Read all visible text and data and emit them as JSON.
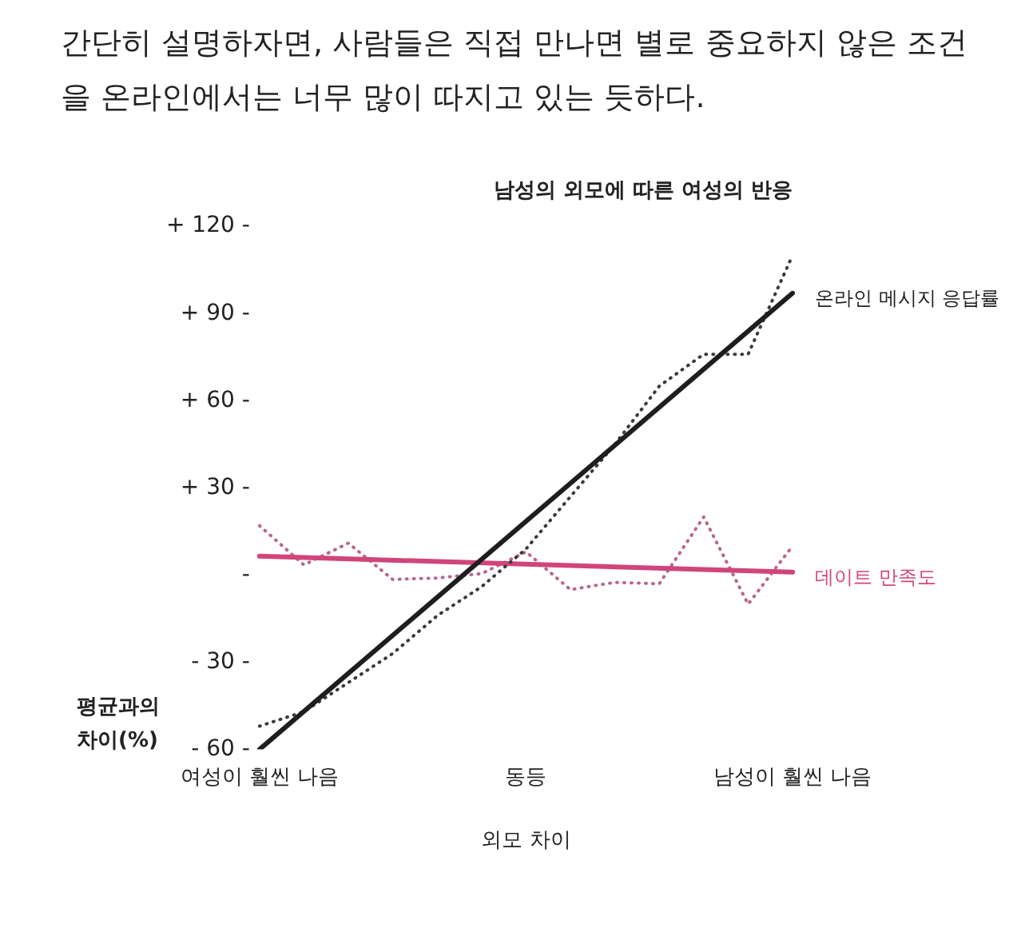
{
  "chart_data": {
    "type": "line",
    "title": "남성의 외모에 따른 여성의 반응",
    "xlabel": "외모 차이",
    "ylabel": "평균과의 차이(%)",
    "annotations": [
      "간단히 설명하자면, 사람들은 직접 만나면 별로 중요하지 않은 조건을 온라인에서는 너무 많이 따지고 있는 듯하다."
    ],
    "categories": [
      "여성이 훨씬 나음",
      null,
      null,
      null,
      null,
      null,
      "동등",
      null,
      null,
      null,
      null,
      null,
      "남성이 훨씬 나음"
    ],
    "series": [
      {
        "name": "온라인 메시지 응답률",
        "color": "#1e1e1e",
        "line_style": "solid",
        "values": [
          -60,
          null,
          null,
          null,
          null,
          null,
          null,
          null,
          null,
          null,
          null,
          null,
          97
        ]
      },
      {
        "color": "#3a3a3a",
        "line_style": "dotted",
        "values": [
          -52,
          -47,
          -37,
          -27,
          -14,
          -4,
          9,
          27,
          45,
          65,
          76,
          76,
          110
        ]
      },
      {
        "name": "데이트 만족도",
        "color": "#d0457a",
        "line_style": "solid",
        "values": [
          6.5,
          null,
          null,
          null,
          null,
          null,
          null,
          null,
          null,
          null,
          null,
          null,
          1
        ]
      },
      {
        "color": "#b9668f",
        "line_style": "dotted",
        "values": [
          17,
          3.5,
          11,
          -1.5,
          -1,
          0.5,
          8,
          -5,
          -2.5,
          -3,
          20,
          -10,
          10
        ]
      }
    ],
    "ylim": [
      -60,
      120
    ],
    "yticks": [
      {
        "value": 120,
        "label": "+ 120 -"
      },
      {
        "value": 90,
        "label": "+ 90 -"
      },
      {
        "value": 60,
        "label": "+ 60 -"
      },
      {
        "value": 30,
        "label": "+ 30 -"
      },
      {
        "value": 0,
        "label": "-"
      },
      {
        "value": -30,
        "label": "- 30 -"
      },
      {
        "value": -60,
        "label": "- 60 -"
      }
    ],
    "grid": false,
    "legend": false,
    "marker": "none"
  }
}
